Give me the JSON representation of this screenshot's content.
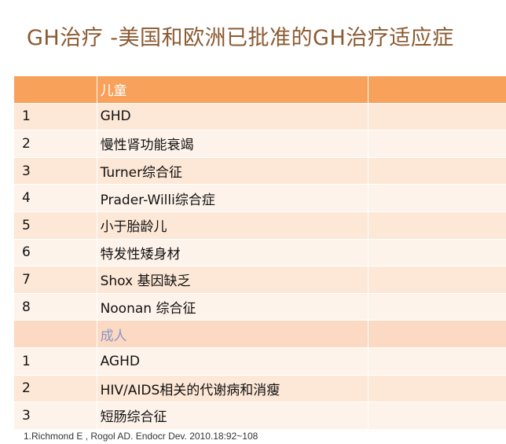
{
  "title": "GH治疗 -美国和欧洲已批准的GH治疗适应症",
  "table": {
    "header_children": "儿童",
    "children": [
      {
        "num": "1",
        "label": "GHD"
      },
      {
        "num": "2",
        "label": "慢性肾功能衰竭"
      },
      {
        "num": "3",
        "label": "Turner综合征"
      },
      {
        "num": "4",
        "label": " Prader-Willi综合症"
      },
      {
        "num": "5",
        "label": "小于胎龄儿"
      },
      {
        "num": "6",
        "label": "特发性矮身材"
      },
      {
        "num": "7",
        "label": "Shox 基因缺乏"
      },
      {
        "num": "8",
        "label": "Noonan 综合征"
      }
    ],
    "header_adults": "成人",
    "adults": [
      {
        "num": "1",
        "label": "AGHD"
      },
      {
        "num": "2",
        "label": "HIV/AIDS相关的代谢病和消瘦"
      },
      {
        "num": "3",
        "label": "短肠综合征"
      }
    ]
  },
  "footer": "1.Richmond E , Rogol AD. Endocr Dev. 2010.18:92~108"
}
